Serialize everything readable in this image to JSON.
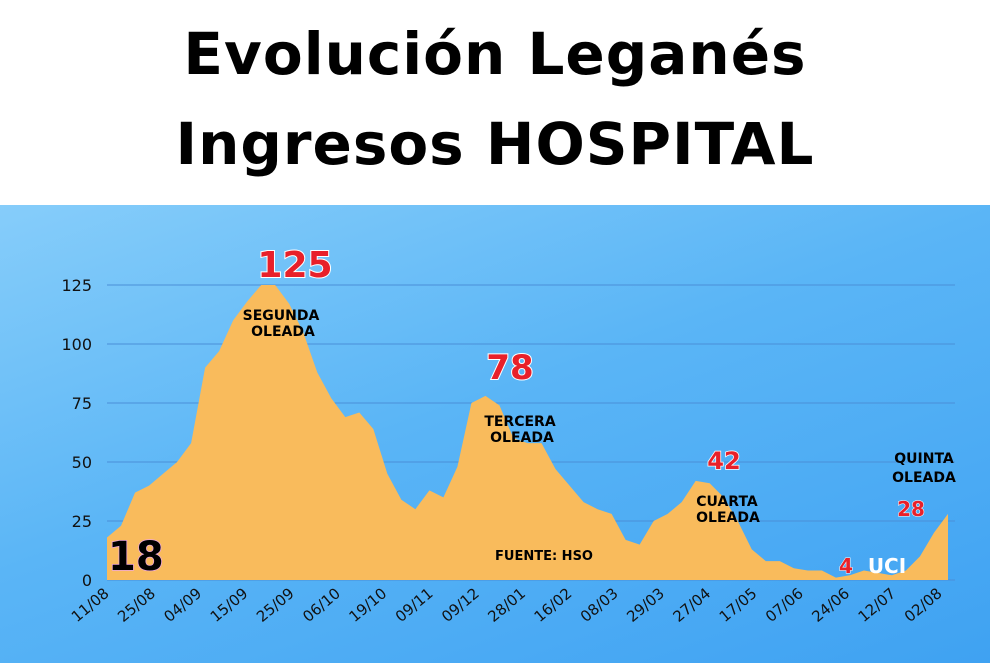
{
  "title_line1": "Evolución Leganés",
  "title_line2": "Ingresos HOSPITAL",
  "colors": {
    "background_top": "#86cdfa",
    "background_bottom": "#3fa2f2",
    "area_fill": "#f9bb5c",
    "gridline": "#4a8fd8",
    "peak_label": "#e8202a",
    "wave_label": "#000000",
    "uci_label": "#ffffff"
  },
  "chart_data": {
    "type": "area",
    "title": "",
    "xlabel": "",
    "ylabel": "",
    "ylim": [
      0,
      125
    ],
    "yticks": [
      0,
      25,
      50,
      75,
      100,
      125
    ],
    "grid": true,
    "x_tick_labels": [
      "11/08",
      "25/08",
      "04/09",
      "15/09",
      "25/09",
      "06/10",
      "19/10",
      "09/11",
      "09/12",
      "28/01",
      "16/02",
      "08/03",
      "29/03",
      "27/04",
      "17/05",
      "07/06",
      "24/06",
      "12/07",
      "02/08"
    ],
    "values": [
      18,
      23,
      37,
      40,
      45,
      50,
      58,
      90,
      97,
      110,
      118,
      125,
      125,
      117,
      105,
      88,
      77,
      69,
      71,
      64,
      45,
      34,
      30,
      38,
      35,
      48,
      75,
      78,
      74,
      60,
      58,
      58,
      47,
      40,
      33,
      30,
      28,
      17,
      15,
      25,
      28,
      33,
      42,
      41,
      35,
      25,
      13,
      8,
      8,
      5,
      4,
      4,
      1,
      2,
      4,
      3,
      2,
      4,
      10,
      20,
      28
    ],
    "annotations": {
      "start_value": "18",
      "peak_segunda": "125",
      "peak_tercera": "78",
      "peak_cuarta": "42",
      "uci_value": "4",
      "uci_label": "UCI",
      "quinta_value": "28",
      "segunda_line1": "SEGUNDA",
      "segunda_line2": "OLEADA",
      "tercera_line1": "TERCERA",
      "tercera_line2": "OLEADA",
      "cuarta_line1": "CUARTA",
      "cuarta_line2": "OLEADA",
      "quinta_line1": "QUINTA",
      "quinta_line2": "OLEADA",
      "source": "FUENTE: HSO"
    }
  }
}
